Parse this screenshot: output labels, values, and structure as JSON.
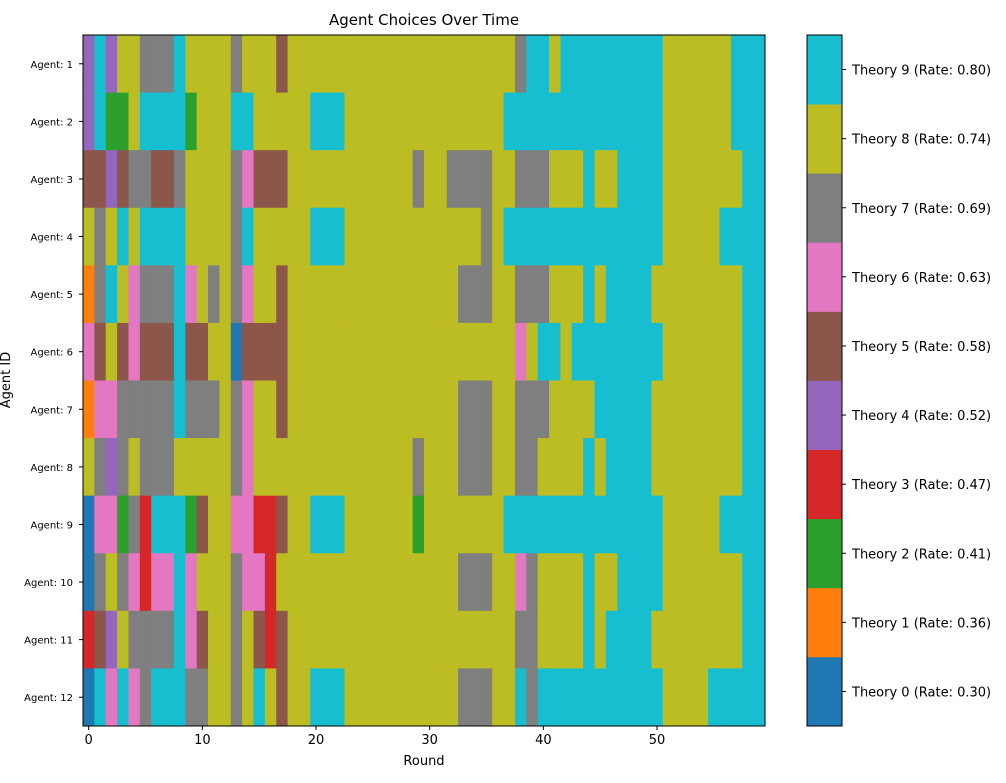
{
  "chart_data": {
    "type": "heatmap",
    "title": "Agent Choices Over Time",
    "xlabel": "Round",
    "ylabel": "Agent ID",
    "xlim": [
      -0.5,
      59.5
    ],
    "xticks": [
      0,
      10,
      20,
      30,
      40,
      50
    ],
    "agents": [
      "Agent: 1",
      "Agent: 2",
      "Agent: 3",
      "Agent: 4",
      "Agent: 5",
      "Agent: 6",
      "Agent: 7",
      "Agent: 8",
      "Agent: 9",
      "Agent: 10",
      "Agent: 11",
      "Agent: 12"
    ],
    "theories": [
      {
        "label": "Theory 0 (Rate: 0.30)",
        "color": "#1f77b4"
      },
      {
        "label": "Theory 1 (Rate: 0.36)",
        "color": "#ff7f0e"
      },
      {
        "label": "Theory 2 (Rate: 0.41)",
        "color": "#2ca02c"
      },
      {
        "label": "Theory 3 (Rate: 0.47)",
        "color": "#d62728"
      },
      {
        "label": "Theory 4 (Rate: 0.52)",
        "color": "#9467bd"
      },
      {
        "label": "Theory 5 (Rate: 0.58)",
        "color": "#8c564b"
      },
      {
        "label": "Theory 6 (Rate: 0.63)",
        "color": "#e377c2"
      },
      {
        "label": "Theory 7 (Rate: 0.69)",
        "color": "#7f7f7f"
      },
      {
        "label": "Theory 8 (Rate: 0.74)",
        "color": "#bcbd22"
      },
      {
        "label": "Theory 9 (Rate: 0.80)",
        "color": "#17becf"
      }
    ],
    "choices": [
      [
        4,
        9,
        4,
        8,
        8,
        7,
        7,
        7,
        9,
        8,
        8,
        8,
        8,
        7,
        8,
        8,
        8,
        5,
        8,
        8,
        8,
        8,
        8,
        8,
        8,
        8,
        8,
        8,
        8,
        8,
        8,
        8,
        8,
        8,
        8,
        8,
        8,
        8,
        7,
        9,
        9,
        8,
        9,
        9,
        9,
        9,
        9,
        9,
        9,
        9,
        9,
        8,
        8,
        8,
        8,
        8,
        8,
        9,
        9,
        9
      ],
      [
        4,
        9,
        2,
        2,
        8,
        9,
        9,
        9,
        9,
        2,
        8,
        8,
        8,
        9,
        9,
        8,
        8,
        8,
        8,
        8,
        9,
        9,
        9,
        8,
        8,
        8,
        8,
        8,
        8,
        8,
        8,
        8,
        8,
        8,
        8,
        8,
        8,
        9,
        9,
        9,
        9,
        9,
        9,
        9,
        9,
        9,
        9,
        9,
        9,
        9,
        9,
        8,
        8,
        8,
        8,
        8,
        8,
        9,
        9,
        9
      ],
      [
        5,
        5,
        4,
        5,
        7,
        7,
        5,
        5,
        7,
        8,
        8,
        8,
        8,
        7,
        6,
        5,
        5,
        5,
        8,
        8,
        8,
        8,
        8,
        8,
        8,
        8,
        8,
        8,
        8,
        7,
        8,
        8,
        7,
        7,
        7,
        7,
        8,
        8,
        7,
        7,
        7,
        8,
        8,
        8,
        9,
        8,
        8,
        9,
        9,
        9,
        9,
        8,
        8,
        8,
        8,
        8,
        8,
        8,
        9,
        9
      ],
      [
        8,
        7,
        8,
        9,
        8,
        9,
        9,
        9,
        9,
        8,
        8,
        8,
        8,
        7,
        9,
        8,
        8,
        8,
        8,
        8,
        9,
        9,
        9,
        8,
        8,
        8,
        8,
        8,
        8,
        8,
        8,
        8,
        8,
        8,
        8,
        7,
        8,
        9,
        9,
        9,
        9,
        9,
        9,
        9,
        9,
        9,
        9,
        9,
        9,
        9,
        9,
        8,
        8,
        8,
        8,
        8,
        9,
        9,
        9,
        9
      ],
      [
        1,
        7,
        9,
        8,
        6,
        7,
        7,
        7,
        9,
        6,
        8,
        7,
        8,
        7,
        6,
        8,
        8,
        5,
        8,
        8,
        8,
        8,
        8,
        8,
        8,
        8,
        8,
        8,
        8,
        8,
        8,
        8,
        8,
        7,
        7,
        7,
        8,
        8,
        7,
        7,
        7,
        8,
        8,
        8,
        9,
        8,
        9,
        9,
        9,
        9,
        8,
        8,
        8,
        8,
        8,
        8,
        8,
        8,
        9,
        9
      ],
      [
        6,
        5,
        8,
        5,
        6,
        5,
        5,
        5,
        9,
        5,
        5,
        8,
        8,
        0,
        5,
        5,
        5,
        5,
        8,
        8,
        8,
        8,
        8,
        8,
        8,
        8,
        8,
        8,
        8,
        8,
        8,
        8,
        8,
        8,
        8,
        8,
        8,
        8,
        6,
        8,
        9,
        9,
        8,
        9,
        9,
        9,
        9,
        9,
        9,
        9,
        9,
        8,
        8,
        8,
        8,
        8,
        8,
        8,
        9,
        9
      ],
      [
        1,
        6,
        6,
        7,
        7,
        7,
        7,
        7,
        9,
        7,
        7,
        7,
        8,
        7,
        6,
        8,
        8,
        5,
        8,
        8,
        8,
        8,
        8,
        8,
        8,
        8,
        8,
        8,
        8,
        8,
        8,
        8,
        8,
        7,
        7,
        7,
        8,
        8,
        7,
        7,
        7,
        8,
        8,
        8,
        8,
        9,
        9,
        9,
        9,
        9,
        8,
        8,
        8,
        8,
        8,
        8,
        8,
        8,
        9,
        9
      ],
      [
        8,
        7,
        4,
        7,
        8,
        7,
        7,
        7,
        8,
        8,
        8,
        8,
        8,
        7,
        6,
        8,
        8,
        8,
        8,
        8,
        8,
        8,
        8,
        8,
        8,
        8,
        8,
        8,
        8,
        7,
        8,
        8,
        8,
        7,
        7,
        7,
        8,
        8,
        7,
        7,
        8,
        8,
        8,
        8,
        9,
        8,
        9,
        9,
        9,
        9,
        8,
        8,
        8,
        8,
        8,
        8,
        8,
        8,
        9,
        9
      ],
      [
        0,
        6,
        6,
        2,
        7,
        3,
        9,
        9,
        9,
        2,
        5,
        8,
        8,
        6,
        6,
        3,
        3,
        5,
        8,
        8,
        9,
        9,
        9,
        8,
        8,
        8,
        8,
        8,
        8,
        2,
        8,
        8,
        8,
        8,
        8,
        8,
        8,
        9,
        9,
        9,
        9,
        9,
        9,
        9,
        9,
        9,
        9,
        9,
        9,
        9,
        9,
        8,
        8,
        8,
        8,
        8,
        9,
        9,
        9,
        9
      ],
      [
        0,
        7,
        8,
        7,
        6,
        3,
        6,
        6,
        9,
        6,
        8,
        8,
        8,
        7,
        6,
        6,
        3,
        8,
        8,
        8,
        8,
        8,
        8,
        8,
        8,
        8,
        8,
        8,
        8,
        8,
        8,
        8,
        8,
        7,
        7,
        7,
        8,
        8,
        6,
        7,
        8,
        8,
        8,
        8,
        9,
        8,
        8,
        9,
        9,
        9,
        9,
        8,
        8,
        8,
        8,
        8,
        8,
        8,
        9,
        9
      ],
      [
        3,
        5,
        4,
        8,
        7,
        7,
        7,
        7,
        9,
        6,
        5,
        8,
        8,
        7,
        8,
        5,
        3,
        5,
        8,
        8,
        8,
        8,
        8,
        8,
        8,
        8,
        8,
        8,
        8,
        8,
        8,
        8,
        8,
        8,
        8,
        8,
        8,
        8,
        7,
        7,
        8,
        8,
        8,
        8,
        9,
        8,
        9,
        9,
        9,
        9,
        8,
        8,
        8,
        8,
        8,
        8,
        8,
        8,
        9,
        9
      ],
      [
        0,
        9,
        6,
        9,
        6,
        7,
        9,
        9,
        9,
        7,
        7,
        8,
        8,
        7,
        8,
        9,
        8,
        5,
        8,
        8,
        9,
        9,
        9,
        8,
        8,
        8,
        8,
        8,
        8,
        8,
        8,
        8,
        8,
        7,
        7,
        7,
        8,
        8,
        9,
        7,
        9,
        9,
        9,
        9,
        9,
        9,
        9,
        9,
        9,
        9,
        9,
        8,
        8,
        8,
        8,
        9,
        9,
        9,
        9,
        9
      ]
    ]
  }
}
